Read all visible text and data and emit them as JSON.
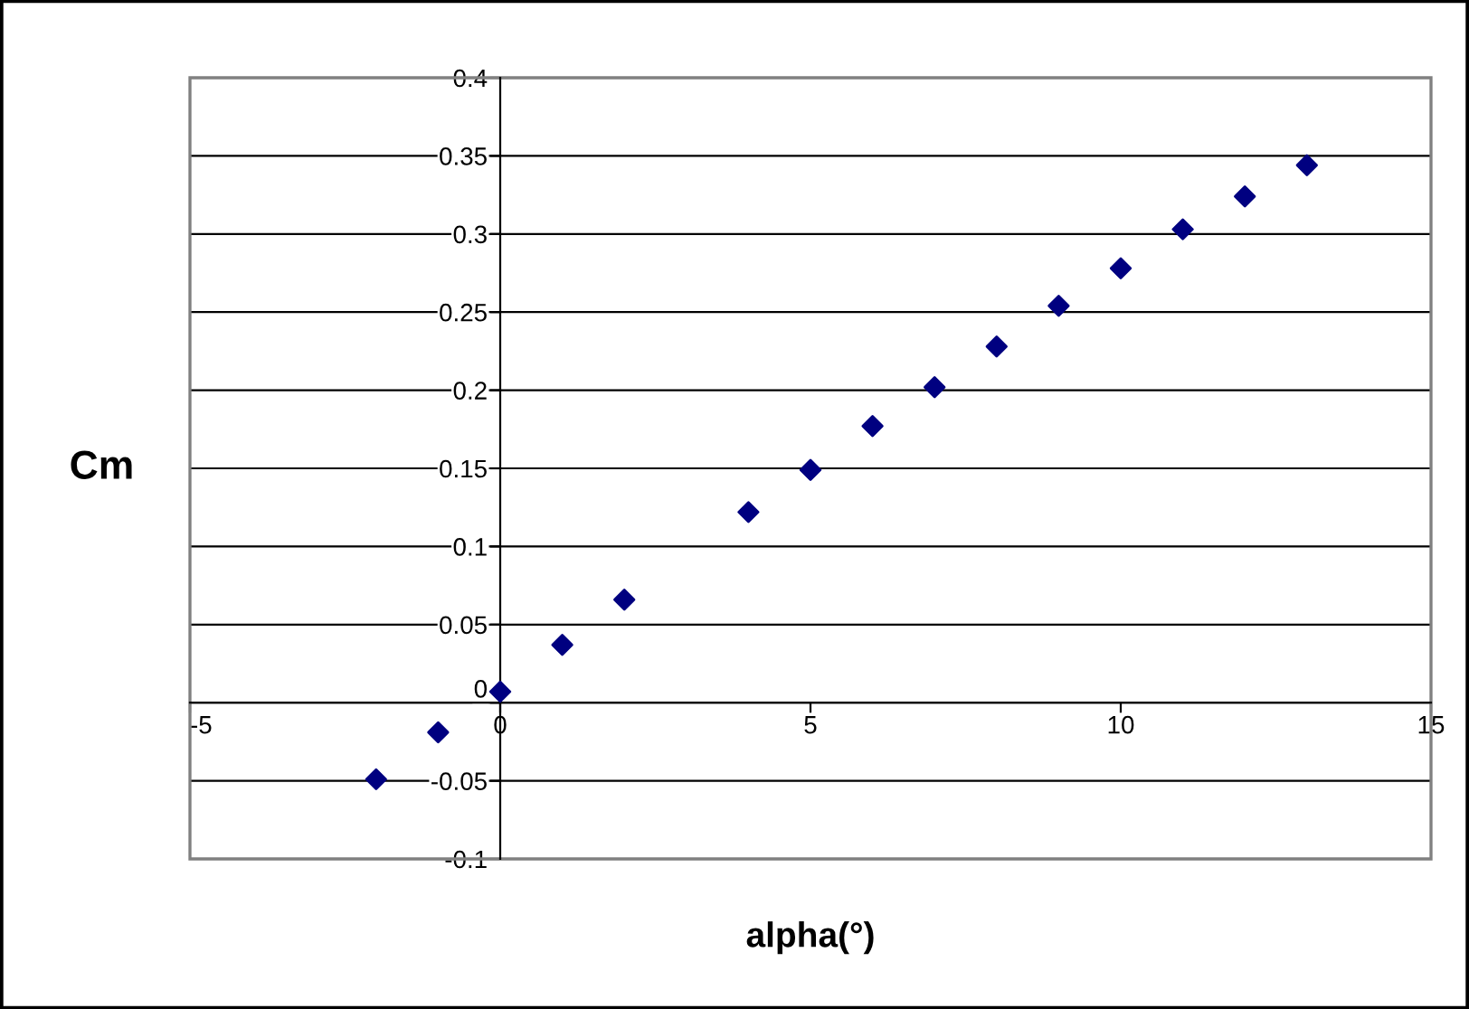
{
  "chart_data": {
    "type": "scatter",
    "xlabel": "alpha(°)",
    "ylabel": "Cm",
    "x": [
      -2,
      -1,
      0,
      1,
      2,
      4,
      5,
      6,
      7,
      8,
      9,
      10,
      11,
      12,
      13
    ],
    "series": [
      {
        "color": "#000080",
        "values": [
          -0.049,
          -0.019,
          0.007,
          0.037,
          0.066,
          0.122,
          0.149,
          0.177,
          0.202,
          0.228,
          0.254,
          0.278,
          0.303,
          0.324,
          0.344
        ]
      }
    ],
    "xlim": [
      -5,
      15
    ],
    "xticks": [
      -5,
      0,
      5,
      10,
      15
    ],
    "ylim": [
      -0.1,
      0.4
    ],
    "yticks": [
      -0.1,
      -0.05,
      0,
      0.05,
      0.1,
      0.15,
      0.2,
      0.25,
      0.3,
      0.35,
      0.4
    ],
    "grid": "y",
    "marker": "diamond",
    "legend": false
  }
}
